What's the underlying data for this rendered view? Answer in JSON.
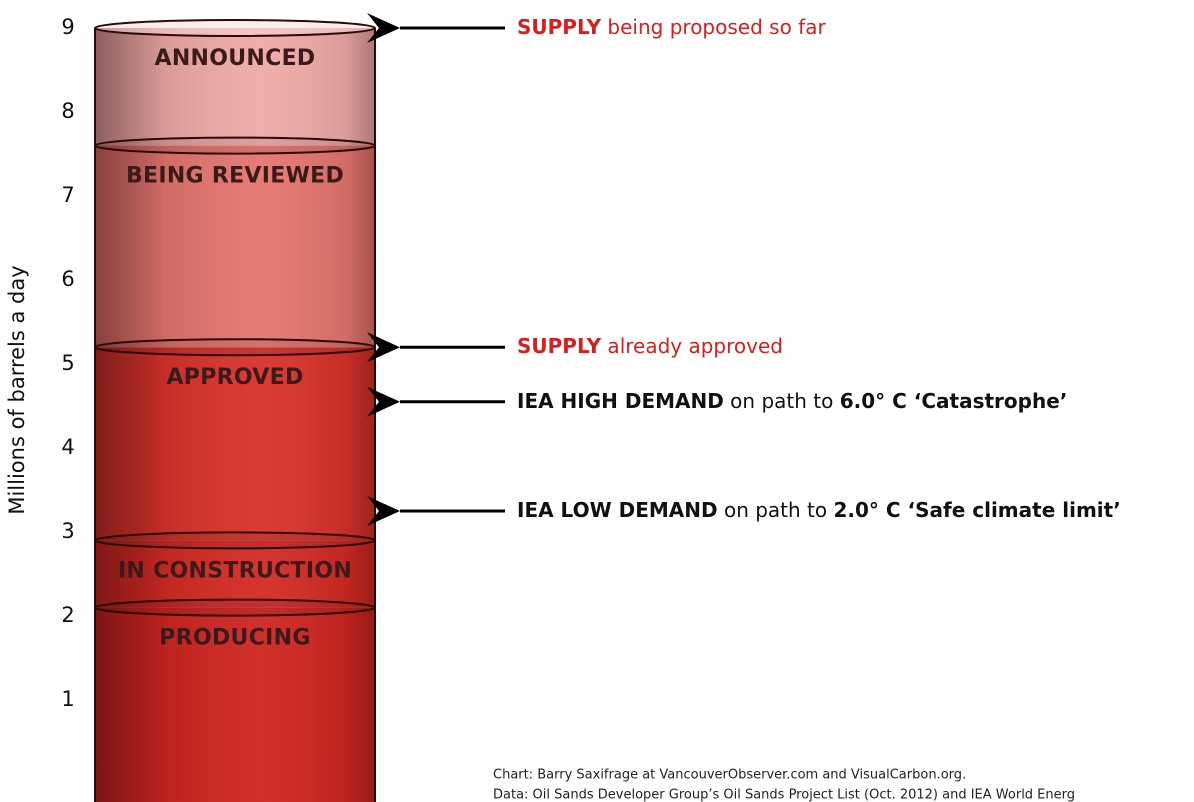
{
  "chart_data": {
    "type": "bar",
    "stacked": true,
    "y_label": "Millions of barrels a day",
    "categories": [
      "PRODUCING",
      "IN CONSTRUCTION",
      "APPROVED",
      "BEING REVIEWED",
      "ANNOUNCED"
    ],
    "values": [
      2.1,
      0.8,
      2.3,
      2.4,
      1.4
    ],
    "colors": [
      "#cf2520",
      "#d42a24",
      "#d8322b",
      "#e5756f",
      "#efaaa6"
    ],
    "ylim": [
      0,
      9
    ],
    "yticks": [
      1,
      2,
      3,
      4,
      5,
      6,
      7,
      8,
      9
    ],
    "grid": false,
    "annotations": [
      {
        "value": 9.0,
        "color": "#d42020",
        "spans": [
          {
            "text": "SUPPLY",
            "bold": true
          },
          {
            "text": " being proposed so far",
            "bold": false
          }
        ]
      },
      {
        "value": 5.2,
        "color": "#d42020",
        "spans": [
          {
            "text": "SUPPLY",
            "bold": true
          },
          {
            "text": " already approved",
            "bold": false
          }
        ]
      },
      {
        "value": 4.55,
        "color": "#111111",
        "spans": [
          {
            "text": "IEA HIGH DEMAND",
            "bold": true
          },
          {
            "text": " on path to ",
            "bold": false
          },
          {
            "text": "6.0° C ‘Catastrophe’",
            "bold": true
          }
        ]
      },
      {
        "value": 3.25,
        "color": "#111111",
        "spans": [
          {
            "text": "IEA LOW DEMAND",
            "bold": true
          },
          {
            "text": " on path to ",
            "bold": false
          },
          {
            "text": "2.0° C ‘Safe climate limit’",
            "bold": true
          }
        ]
      }
    ],
    "source": [
      "Chart: Barry Saxifrage at VancouverObserver.com and VisualCarbon.org.",
      "Data: Oil Sands Developer Group’s Oil Sands Project List (Oct. 2012) and IEA World Energ"
    ]
  }
}
